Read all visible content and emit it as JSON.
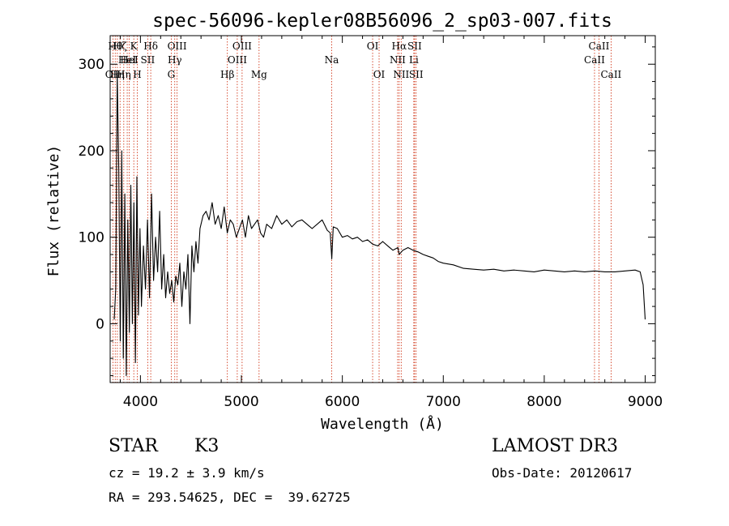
{
  "chart_data": {
    "type": "line",
    "title": "spec-56096-kepler08B56096_2_sp03-007.fits",
    "xlabel": "Wavelength (Å)",
    "ylabel": "Flux (relative)",
    "xlim": [
      3700,
      9100
    ],
    "ylim": [
      -68,
      333
    ],
    "xticks": [
      4000,
      5000,
      6000,
      7000,
      8000,
      9000
    ],
    "xtick_labels": [
      "4000",
      "5000",
      "6000",
      "7000",
      "8000",
      "9000"
    ],
    "yticks": [
      0,
      100,
      200,
      300
    ],
    "ytick_labels": [
      "0",
      "100",
      "200",
      "300"
    ],
    "grid": false,
    "series": [
      {
        "name": "flux",
        "color": "#000000",
        "x": [
          3740,
          3755,
          3770,
          3785,
          3800,
          3815,
          3830,
          3845,
          3860,
          3875,
          3890,
          3905,
          3920,
          3935,
          3950,
          3965,
          3980,
          3995,
          4010,
          4030,
          4050,
          4070,
          4090,
          4110,
          4130,
          4150,
          4170,
          4190,
          4210,
          4230,
          4250,
          4270,
          4290,
          4310,
          4330,
          4350,
          4370,
          4390,
          4410,
          4430,
          4450,
          4470,
          4490,
          4510,
          4530,
          4550,
          4570,
          4590,
          4620,
          4650,
          4680,
          4710,
          4740,
          4770,
          4800,
          4830,
          4860,
          4890,
          4920,
          4950,
          4980,
          5010,
          5040,
          5070,
          5100,
          5130,
          5160,
          5190,
          5220,
          5250,
          5300,
          5350,
          5400,
          5450,
          5500,
          5550,
          5600,
          5650,
          5700,
          5750,
          5800,
          5850,
          5880,
          5895,
          5910,
          5950,
          6000,
          6050,
          6100,
          6150,
          6200,
          6250,
          6300,
          6350,
          6400,
          6450,
          6500,
          6550,
          6563,
          6600,
          6650,
          6700,
          6750,
          6800,
          6850,
          6900,
          6950,
          7000,
          7100,
          7200,
          7300,
          7400,
          7500,
          7600,
          7700,
          7800,
          7900,
          8000,
          8100,
          8200,
          8300,
          8400,
          8500,
          8600,
          8700,
          8800,
          8900,
          8950,
          8980,
          9000
        ],
        "y": [
          5,
          40,
          290,
          180,
          -20,
          200,
          -40,
          150,
          -60,
          120,
          -10,
          160,
          0,
          140,
          -45,
          170,
          10,
          110,
          20,
          90,
          40,
          120,
          30,
          150,
          50,
          100,
          60,
          130,
          40,
          80,
          30,
          60,
          35,
          50,
          25,
          55,
          45,
          70,
          20,
          60,
          40,
          80,
          0,
          90,
          60,
          95,
          70,
          110,
          125,
          130,
          120,
          140,
          115,
          125,
          110,
          135,
          105,
          120,
          115,
          100,
          110,
          120,
          100,
          125,
          110,
          115,
          120,
          105,
          100,
          115,
          110,
          125,
          115,
          120,
          112,
          118,
          120,
          115,
          110,
          115,
          120,
          108,
          105,
          75,
          112,
          110,
          100,
          102,
          98,
          100,
          95,
          97,
          92,
          90,
          95,
          90,
          85,
          88,
          80,
          85,
          88,
          85,
          83,
          80,
          78,
          76,
          72,
          70,
          68,
          64,
          63,
          62,
          63,
          61,
          62,
          61,
          60,
          62,
          61,
          60,
          61,
          60,
          61,
          60,
          60,
          61,
          62,
          60,
          45,
          5
        ]
      }
    ],
    "lines": [
      {
        "x": 3727,
        "label": "OII",
        "row": 2
      },
      {
        "x": 3750,
        "label": "Hθ",
        "row": 0
      },
      {
        "x": 3771,
        "label": "Hη",
        "row": 2
      },
      {
        "x": 3798,
        "label": "Hζ",
        "row": 0
      },
      {
        "x": 3835,
        "label": "Hη",
        "row": 2
      },
      {
        "x": 3869,
        "label": "HeI",
        "row": 1
      },
      {
        "x": 3889,
        "label": "HeI",
        "row": 1
      },
      {
        "x": 3934,
        "label": "K",
        "row": 0
      },
      {
        "x": 3969,
        "label": "H",
        "row": 2
      },
      {
        "x": 4072,
        "label": "SII",
        "row": 1
      },
      {
        "x": 4102,
        "label": "Hδ",
        "row": 0
      },
      {
        "x": 4305,
        "label": "G",
        "row": 2
      },
      {
        "x": 4340,
        "label": "Hγ",
        "row": 1
      },
      {
        "x": 4363,
        "label": "OIII",
        "row": 0
      },
      {
        "x": 4861,
        "label": "Hβ",
        "row": 2
      },
      {
        "x": 4959,
        "label": "OIII",
        "row": 1
      },
      {
        "x": 5007,
        "label": "OIII",
        "row": 0
      },
      {
        "x": 5175,
        "label": "Mg",
        "row": 2
      },
      {
        "x": 5894,
        "label": "Na",
        "row": 1
      },
      {
        "x": 6300,
        "label": "OI",
        "row": 0
      },
      {
        "x": 6364,
        "label": "OI",
        "row": 2
      },
      {
        "x": 6548,
        "label": "NII",
        "row": 1
      },
      {
        "x": 6563,
        "label": "Hα",
        "row": 0
      },
      {
        "x": 6583,
        "label": "NII",
        "row": 2
      },
      {
        "x": 6708,
        "label": "Li",
        "row": 1
      },
      {
        "x": 6716,
        "label": "SII",
        "row": 0
      },
      {
        "x": 6731,
        "label": "SII",
        "row": 2
      },
      {
        "x": 8498,
        "label": "CaII",
        "row": 1
      },
      {
        "x": 8542,
        "label": "CaII",
        "row": 0
      },
      {
        "x": 8662,
        "label": "CaII",
        "row": 2
      }
    ]
  },
  "info": {
    "object_type": "STAR",
    "subclass": "K3",
    "survey": "LAMOST DR3",
    "redshift": "cz = 19.2 ± 3.9 km/s",
    "obs_date": "Obs-Date: 20120617",
    "coords": "RA = 293.54625, DEC =  39.62725"
  }
}
